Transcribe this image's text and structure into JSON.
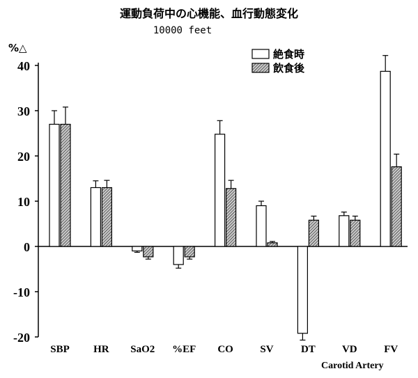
{
  "chart_data": {
    "type": "bar",
    "title": "運動負荷中の心機能、血行動態変化",
    "subtitle": "10000 feet",
    "ylabel": "%△",
    "ylim": [
      -20,
      40
    ],
    "yticks": [
      "40",
      "30",
      "20",
      "10",
      "0",
      "-10",
      "-20"
    ],
    "ytick_values": [
      40,
      30,
      20,
      10,
      0,
      -10,
      -20
    ],
    "categories": [
      "SBP",
      "HR",
      "SaO2",
      "%EF",
      "CO",
      "SV",
      "DT",
      "VD",
      "FV"
    ],
    "note": "Carotid Artery",
    "series": [
      {
        "name": "絶食時",
        "fill": "white",
        "values": [
          27,
          13,
          -1,
          -4,
          24.8,
          9,
          -19.2,
          6.8,
          38.7
        ],
        "errors": [
          3,
          1.5,
          0.3,
          0.8,
          3,
          1,
          1.5,
          0.8,
          3.5
        ]
      },
      {
        "name": "飲食後",
        "fill": "hatch",
        "values": [
          27,
          13,
          -2.3,
          -2.3,
          12.8,
          0.8,
          5.8,
          5.8,
          17.6
        ],
        "errors": [
          3.8,
          1.6,
          0.5,
          0.5,
          1.8,
          0.3,
          0.9,
          0.9,
          2.8
        ]
      }
    ],
    "grid": false,
    "legend": "top-right"
  }
}
